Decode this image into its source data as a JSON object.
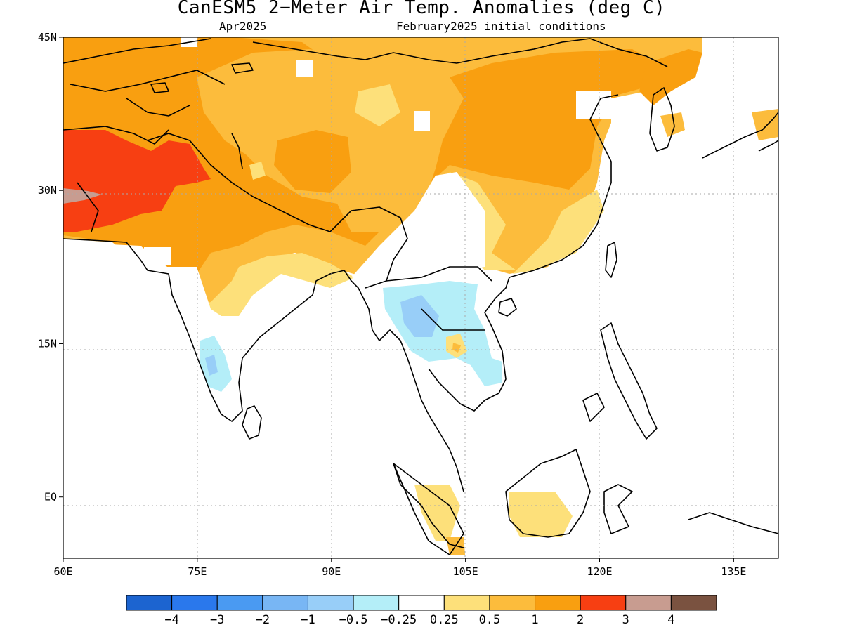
{
  "title": "CanESM5 2−Meter Air Temp. Anomalies (deg C)",
  "subtitle_left": "Apr2025",
  "subtitle_right": "February2025 initial conditions",
  "map": {
    "lon_range": [
      60,
      140
    ],
    "lat_range": [
      -6,
      45
    ],
    "lat_ticks": [
      {
        "value": 45,
        "label": "45N"
      },
      {
        "value": 30,
        "label": "30N"
      },
      {
        "value": 15,
        "label": "15N"
      },
      {
        "value": 0,
        "label": "EQ"
      }
    ],
    "lon_ticks": [
      {
        "value": 60,
        "label": "60E"
      },
      {
        "value": 75,
        "label": "75E"
      },
      {
        "value": 90,
        "label": "90E"
      },
      {
        "value": 105,
        "label": "105E"
      },
      {
        "value": 120,
        "label": "120E"
      },
      {
        "value": 135,
        "label": "135E"
      }
    ],
    "grid": "dotted"
  },
  "colorbar": {
    "colors": [
      "#1c64d0",
      "#2a78ec",
      "#4a9af2",
      "#78b6f4",
      "#98cef8",
      "#b4eef8",
      "#ffffff",
      "#fde07a",
      "#fcbc3c",
      "#f99f10",
      "#f73f12",
      "#c89c90",
      "#7a5240"
    ],
    "labels": [
      "−4",
      "−3",
      "−2",
      "−1",
      "−0.5",
      "−0.25",
      "0.25",
      "0.5",
      "1",
      "2",
      "3",
      "4"
    ]
  },
  "legend_colors": {
    "lt_0_5": "#fde07a",
    "0_5_to_1": "#fcbc3c",
    "1_to_2": "#f99f10",
    "2_to_3": "#f73f12",
    "3_to_4": "#c89c90",
    "neg_0_25": "#b4eef8",
    "neg_0_5": "#98cef8",
    "coast": "#000000",
    "grid": "#aaaaaa"
  }
}
